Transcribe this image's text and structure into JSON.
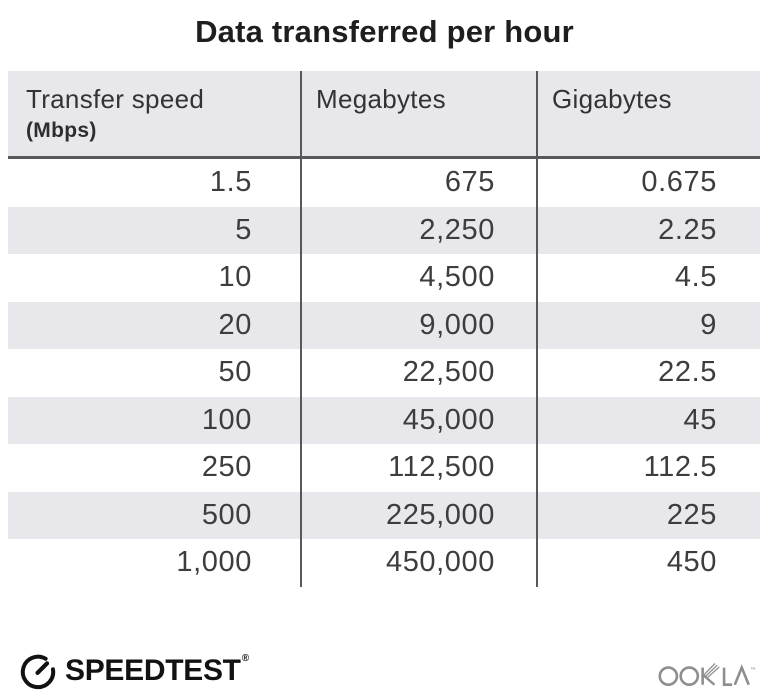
{
  "page": {
    "title": "Data transferred per hour"
  },
  "table": {
    "header": {
      "col1_line1": "Transfer speed",
      "col1_line2": "(Mbps)",
      "col2": "Megabytes",
      "col3": "Gigabytes"
    },
    "rows": [
      [
        "1.5",
        "675",
        "0.675"
      ],
      [
        "5",
        "2,250",
        "2.25"
      ],
      [
        "10",
        "4,500",
        "4.5"
      ],
      [
        "20",
        "9,000",
        "9"
      ],
      [
        "50",
        "22,500",
        "22.5"
      ],
      [
        "100",
        "45,000",
        "45"
      ],
      [
        "250",
        "112,500",
        "112.5"
      ],
      [
        "500",
        "225,000",
        "225"
      ],
      [
        "1,000",
        "450,000",
        "450"
      ]
    ]
  },
  "chart_data": {
    "type": "table",
    "title": "Data transferred per hour",
    "columns": [
      "Transfer speed (Mbps)",
      "Megabytes",
      "Gigabytes"
    ],
    "rows": [
      [
        1.5,
        675,
        0.675
      ],
      [
        5,
        2250,
        2.25
      ],
      [
        10,
        4500,
        4.5
      ],
      [
        20,
        9000,
        9
      ],
      [
        50,
        22500,
        22.5
      ],
      [
        100,
        45000,
        45
      ],
      [
        250,
        112500,
        112.5
      ],
      [
        500,
        225000,
        225
      ],
      [
        1000,
        450000,
        450
      ]
    ]
  },
  "footer": {
    "speedtest_label": "SPEEDTEST",
    "speedtest_mark": "®",
    "ookla_label": "OOKLA",
    "ookla_trademark": "™"
  },
  "colors": {
    "stripe": "#e8e7eb",
    "header_bg": "#e8e7eb",
    "divider": "#58585a",
    "title_text": "#1e1e1e",
    "cell_text": "#3d3d3d",
    "ookla_gray": "#8e8e8e",
    "speedtest_black": "#121212"
  }
}
